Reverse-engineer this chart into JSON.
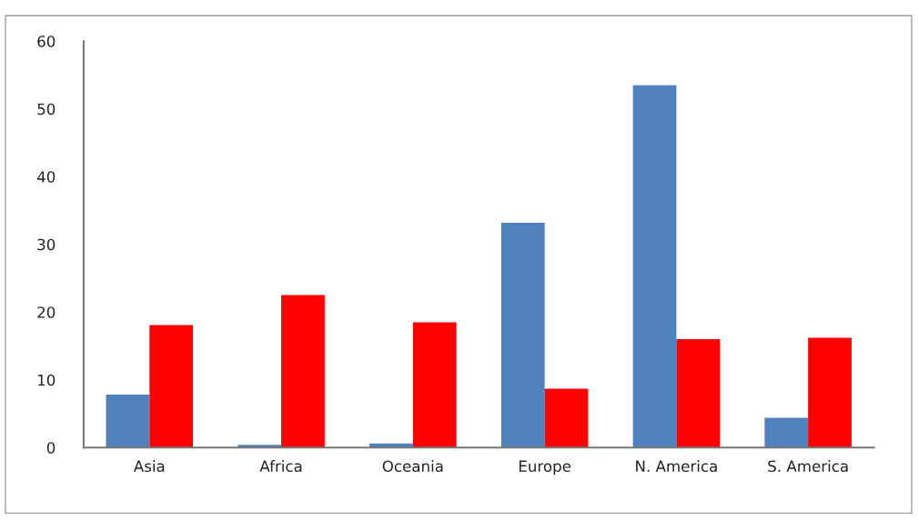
{
  "chart_data": {
    "type": "bar",
    "categories": [
      "Asia",
      "Africa",
      "Oceania",
      "Europe",
      "N. America",
      "S. America"
    ],
    "series": [
      {
        "color": "#4f81bd",
        "values": [
          7.8,
          0.4,
          0.6,
          33.2,
          53.5,
          4.4
        ]
      },
      {
        "color": "#ff0000",
        "values": [
          18.1,
          22.5,
          18.5,
          8.7,
          16.0,
          16.2
        ]
      }
    ],
    "ylim": [
      0,
      60
    ],
    "yticks": [
      0,
      10,
      20,
      30,
      40,
      50,
      60
    ],
    "grid": false
  }
}
